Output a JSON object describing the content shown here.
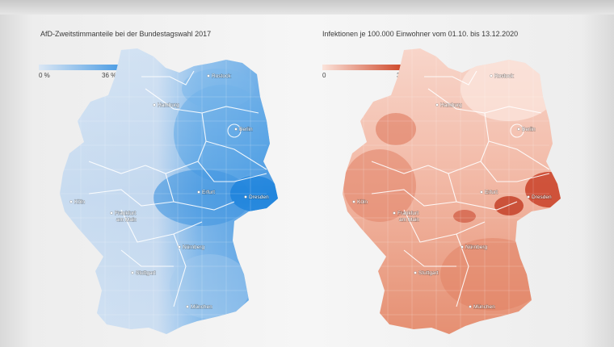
{
  "maps": [
    {
      "title": "AfD-Zweitstimmanteile bei der Bundestagswahl 2017",
      "legend": {
        "min": "0 %",
        "max": "36 %",
        "color_low": "#dbe7f4",
        "color_high": "#3f96e2"
      },
      "cities": [
        "Rostock",
        "Hamburg",
        "Berlin",
        "Erfurt",
        "Dresden",
        "Köln",
        "Frankfurt am Main",
        "Nürnberg",
        "Stuttgart",
        "München"
      ]
    },
    {
      "title": "Infektionen je 100.000 Einwohner vom 01.10. bis 13.12.2020",
      "legend": {
        "min": "0",
        "max": "3400",
        "color_low": "#fbe3da",
        "color_high": "#c8381f"
      },
      "cities": [
        "Rostock",
        "Hamburg",
        "Berlin",
        "Erfurt",
        "Dresden",
        "Köln",
        "Frankfurt am Main",
        "Nürnberg",
        "Stuttgart",
        "München"
      ]
    }
  ]
}
